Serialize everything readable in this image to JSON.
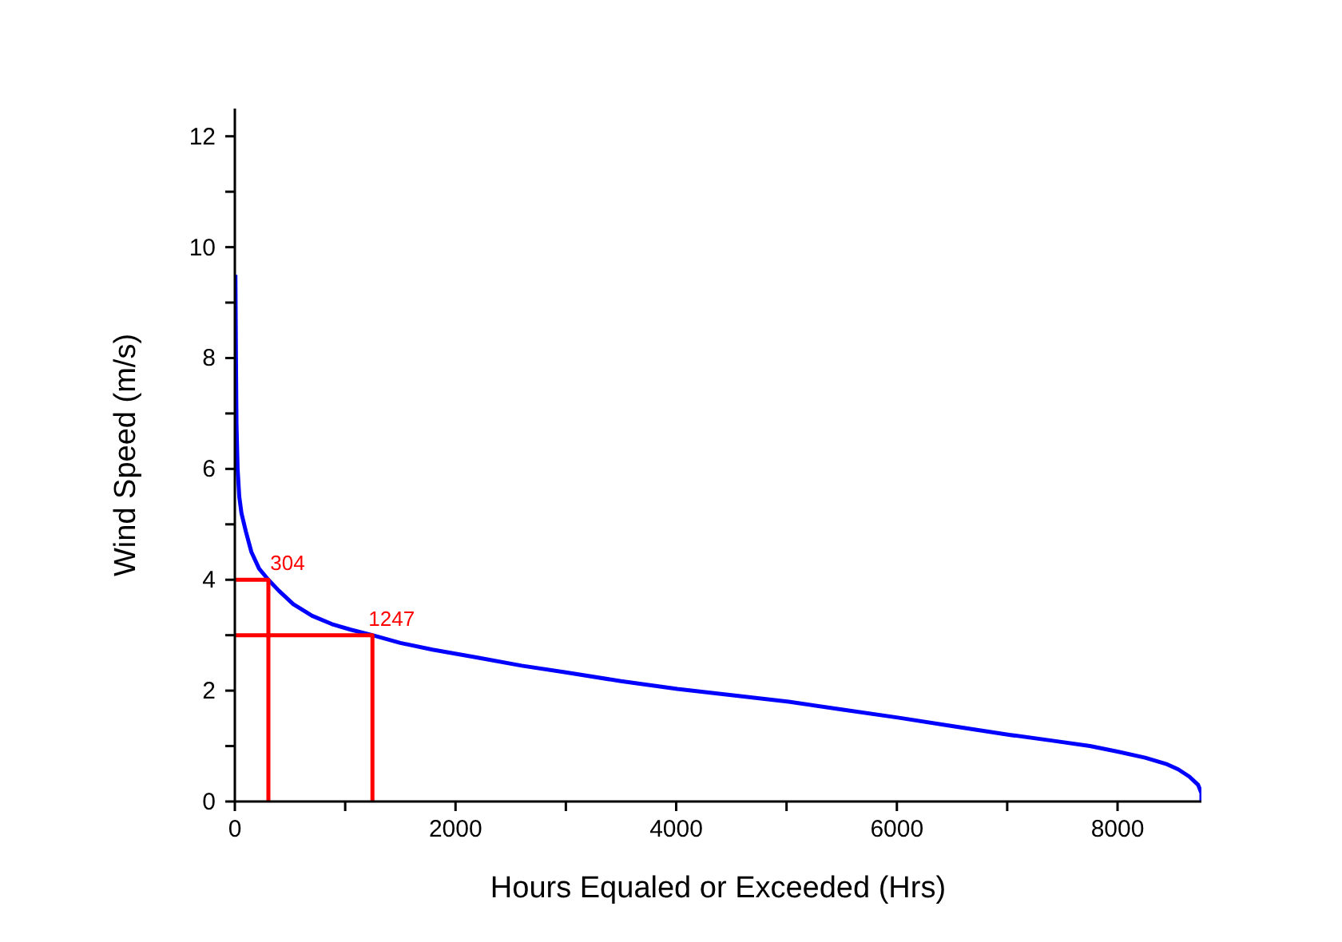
{
  "chart_data": {
    "type": "line",
    "xlabel": "Hours Equaled or Exceeded (Hrs)",
    "ylabel": "Wind Speed (m/s)",
    "xlim": [
      0,
      8760
    ],
    "ylim": [
      0,
      12.5
    ],
    "xticks": [
      0,
      {
        "value": 1000,
        "label": null
      },
      2000,
      {
        "value": 3000,
        "label": null
      },
      4000,
      {
        "value": 5000,
        "label": null
      },
      6000,
      {
        "value": 7000,
        "label": null
      },
      8000
    ],
    "yticks": [
      0,
      {
        "value": 1,
        "label": null
      },
      2,
      {
        "value": 3,
        "label": null
      },
      4,
      {
        "value": 5,
        "label": null
      },
      6,
      {
        "value": 7,
        "label": null
      },
      8,
      {
        "value": 9,
        "label": null
      },
      10,
      {
        "value": 11,
        "label": null
      },
      12
    ],
    "grid": false,
    "marker": "none",
    "line_style": "solid",
    "series": [
      {
        "color": "#0000ff",
        "x": [
          5,
          10,
          15,
          25,
          40,
          60,
          100,
          150,
          220,
          304,
          400,
          530,
          700,
          880,
          1050,
          1247,
          1500,
          1790,
          2190,
          2600,
          3000,
          3500,
          4010,
          4500,
          5020,
          5500,
          6020,
          6500,
          7030,
          7400,
          7750,
          8000,
          8250,
          8450,
          8550,
          8650,
          8730,
          8760,
          8760
        ],
        "values": [
          9.5,
          8.0,
          6.8,
          6.0,
          5.5,
          5.2,
          4.87,
          4.5,
          4.2,
          4.0,
          3.8,
          3.56,
          3.35,
          3.2,
          3.1,
          3.0,
          2.86,
          2.74,
          2.6,
          2.45,
          2.33,
          2.17,
          2.03,
          1.92,
          1.8,
          1.66,
          1.51,
          1.36,
          1.2,
          1.1,
          1.0,
          0.9,
          0.79,
          0.67,
          0.58,
          0.45,
          0.3,
          0.15,
          0
        ]
      },
      {
        "color": "#ff0000",
        "x": [
          0,
          304,
          304
        ],
        "values": [
          4,
          4,
          0
        ]
      },
      {
        "color": "#ff0000",
        "x": [
          0,
          1247,
          1247
        ],
        "values": [
          3,
          3,
          0
        ]
      }
    ],
    "annotations": [
      {
        "text": "304",
        "x": 304,
        "y": 4
      },
      {
        "text": "1247",
        "x": 1247,
        "y": 3
      }
    ]
  }
}
